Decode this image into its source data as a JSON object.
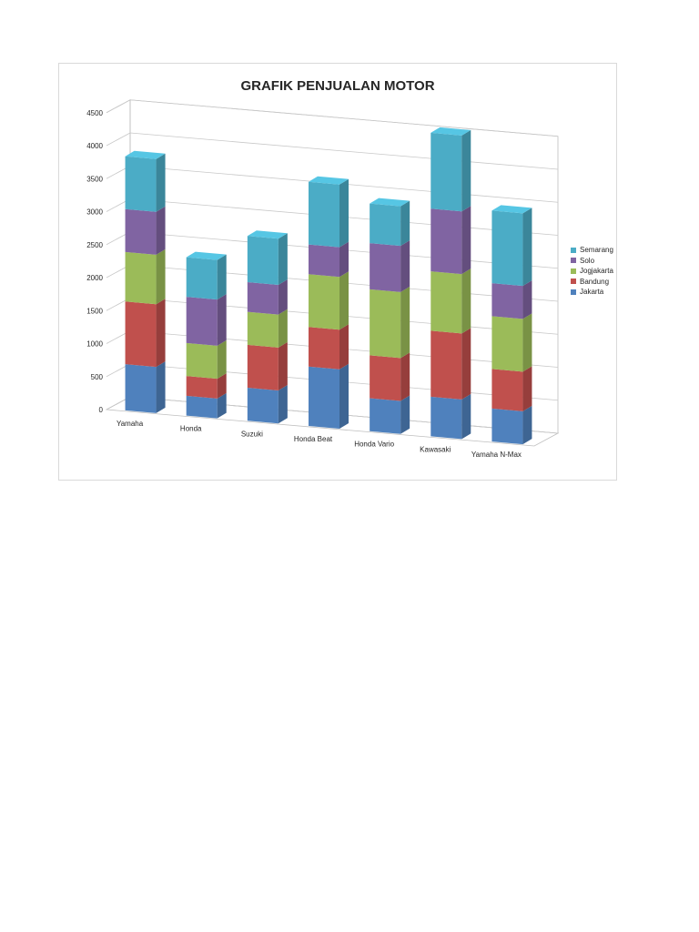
{
  "chart_data": {
    "type": "bar",
    "stacked": true,
    "three_d": true,
    "title": "GRAFIK PENJUALAN MOTOR",
    "categories": [
      "Yamaha",
      "Honda",
      "Suzuki",
      "Honda Beat",
      "Honda Vario",
      "Kawasaki",
      "Yamaha N-Max"
    ],
    "series": [
      {
        "name": "Jakarta",
        "color": "#4f81bd",
        "values": [
          700,
          300,
          500,
          900,
          500,
          600,
          500
        ]
      },
      {
        "name": "Bandung",
        "color": "#c0504d",
        "values": [
          950,
          300,
          650,
          600,
          650,
          1000,
          600
        ]
      },
      {
        "name": "Jogjakarta",
        "color": "#9bbb59",
        "values": [
          750,
          500,
          500,
          800,
          1000,
          900,
          800
        ]
      },
      {
        "name": "Solo",
        "color": "#8064a2",
        "values": [
          650,
          700,
          450,
          450,
          700,
          950,
          500
        ]
      },
      {
        "name": "Semarang",
        "color": "#4bacc6",
        "values": [
          800,
          600,
          700,
          950,
          600,
          1150,
          1100
        ]
      }
    ],
    "y_ticks": [
      "0",
      "500",
      "1000",
      "1500",
      "2000",
      "2500",
      "3000",
      "3500",
      "4000",
      "4500"
    ],
    "ylim": [
      0,
      4500
    ],
    "grid": true,
    "legend": "right",
    "legend_order": [
      "Semarang",
      "Solo",
      "Jogjakarta",
      "Bandung",
      "Jakarta"
    ]
  }
}
